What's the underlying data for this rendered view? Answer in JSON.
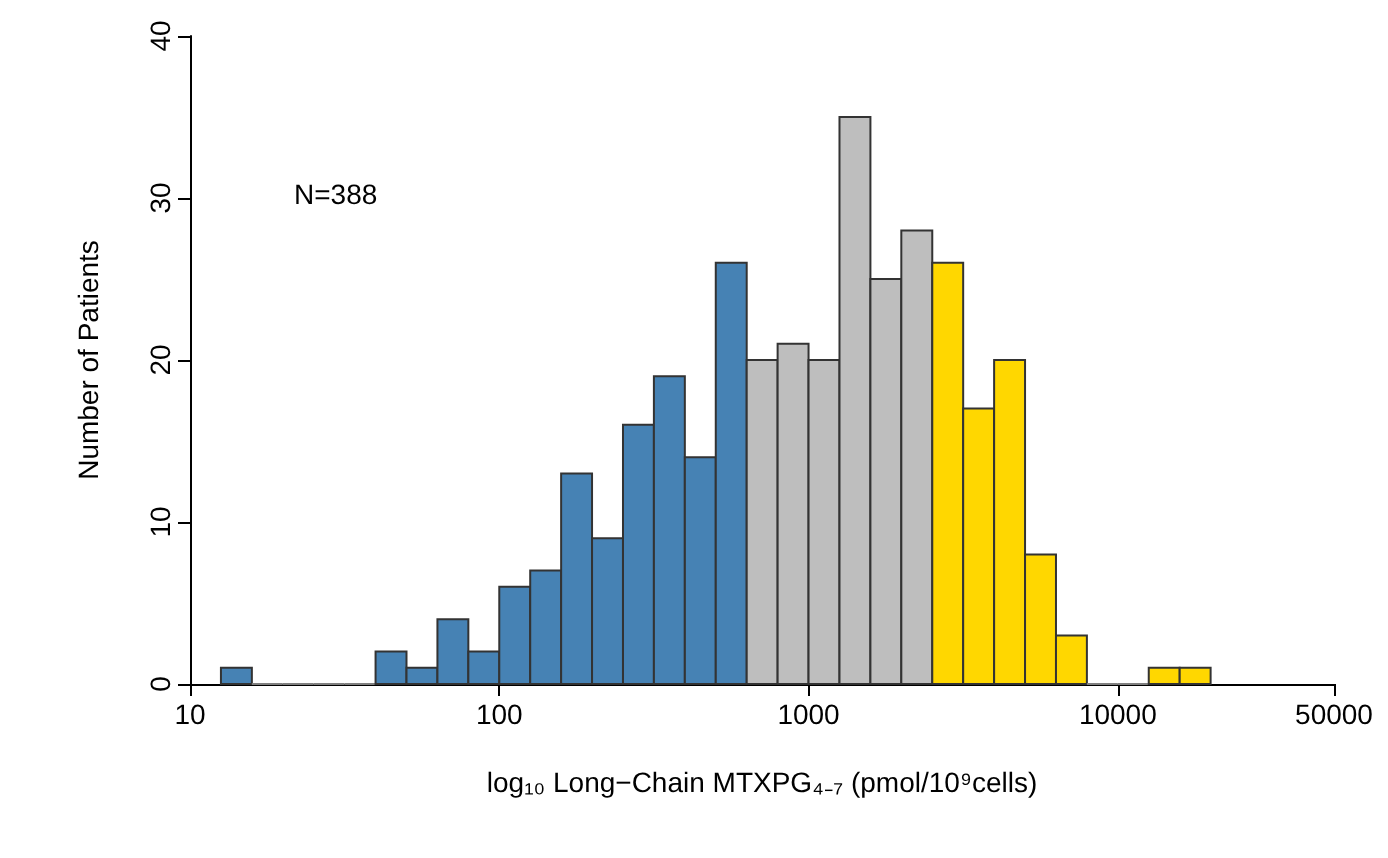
{
  "chart_data": {
    "type": "histogram",
    "xlabel": "log₁₀ Long−Chain MTXPG₄₋₇ (pmol/10⁹cells)",
    "ylabel": "Number of Patients",
    "annotations": [
      "N=388"
    ],
    "bins": [
      12.59,
      15.85,
      19.95,
      25.12,
      31.62,
      39.81,
      50.12,
      63.1,
      79.43,
      100,
      125.9,
      158.5,
      199.5,
      251.2,
      316.2,
      398.1,
      501.2,
      631,
      794.3,
      1000,
      1259,
      1585,
      1995,
      2512,
      3162,
      3981,
      5012,
      6310,
      7943,
      10000,
      12589,
      15849,
      19953
    ],
    "values": [
      1,
      0,
      0,
      0,
      0,
      2,
      1,
      4,
      2,
      6,
      7,
      13,
      9,
      16,
      19,
      14,
      26,
      20,
      21,
      20,
      35,
      25,
      28,
      26,
      17,
      20,
      8,
      3,
      0,
      0,
      1,
      1
    ],
    "colors": [
      "#4682b4",
      "#808080",
      "#808080",
      "#808080",
      "#808080",
      "#4682b4",
      "#4682b4",
      "#4682b4",
      "#4682b4",
      "#4682b4",
      "#4682b4",
      "#4682b4",
      "#4682b4",
      "#4682b4",
      "#4682b4",
      "#4682b4",
      "#4682b4",
      "#bebebe",
      "#bebebe",
      "#bebebe",
      "#bebebe",
      "#bebebe",
      "#bebebe",
      "#ffd700",
      "#ffd700",
      "#ffd700",
      "#ffd700",
      "#ffd700",
      "#808080",
      "#808080",
      "#ffd700",
      "#ffd700"
    ],
    "log": "x",
    "xlim": [
      10,
      50000
    ],
    "xticks": [
      10,
      100,
      1000,
      10000,
      50000
    ],
    "ylim": [
      0,
      40
    ],
    "yticks": [
      0,
      10,
      20,
      30,
      40
    ]
  }
}
